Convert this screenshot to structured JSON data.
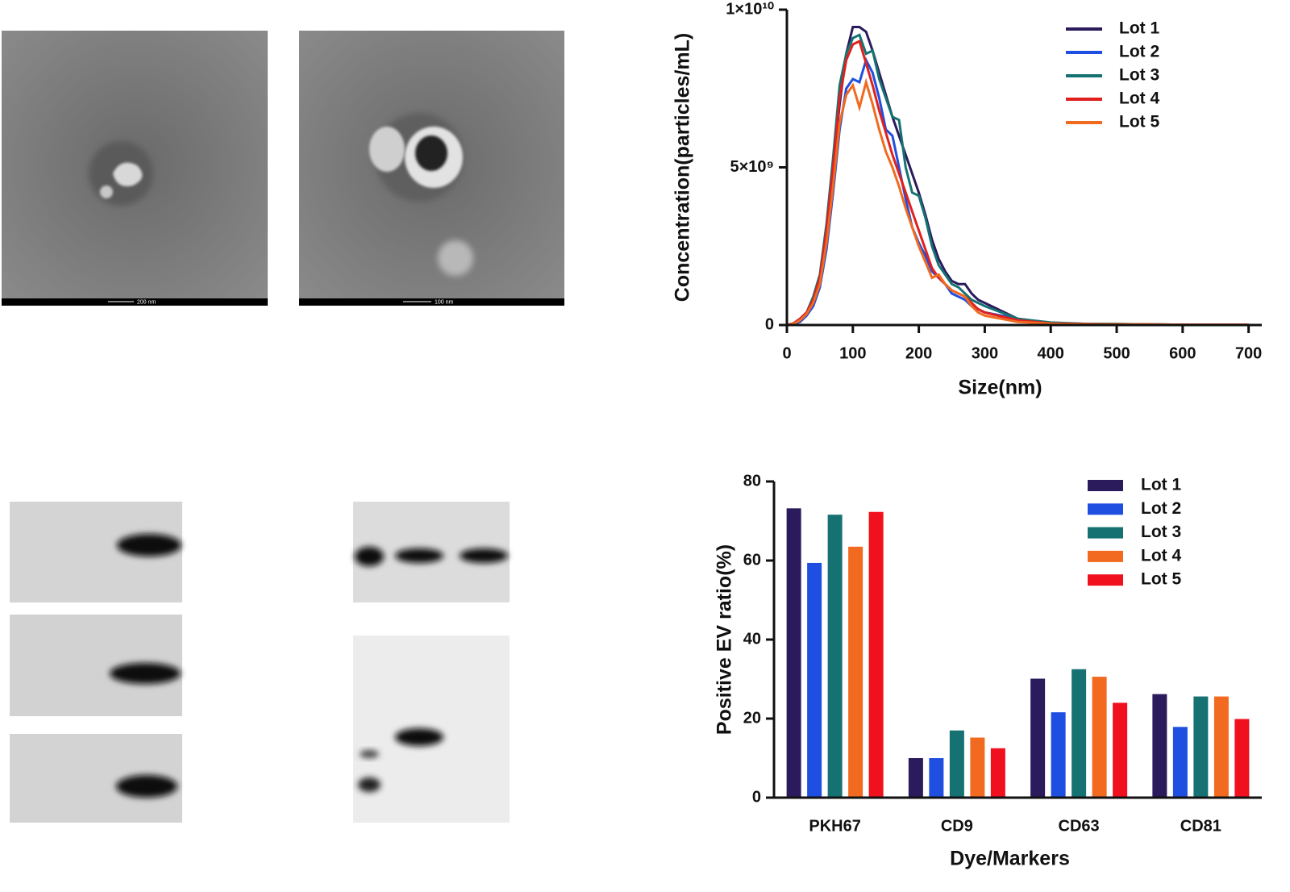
{
  "images": [
    {
      "scale_label": "200 nm"
    },
    {
      "scale_label": "100 nm"
    }
  ],
  "chart_data": [
    {
      "type": "line",
      "x_label": "Size(nm)",
      "y_label": "Concentration(particles/mL)",
      "x": [
        0,
        10,
        20,
        30,
        40,
        50,
        60,
        70,
        80,
        90,
        100,
        110,
        120,
        130,
        140,
        150,
        160,
        170,
        180,
        190,
        200,
        210,
        220,
        230,
        240,
        250,
        260,
        270,
        280,
        290,
        300,
        350,
        400,
        450,
        500,
        550,
        600,
        650,
        700
      ],
      "xlim": [
        0,
        720
      ],
      "xticks": [
        0,
        100,
        200,
        300,
        400,
        500,
        600,
        700
      ],
      "ylim": [
        0,
        10000000000.0
      ],
      "yticks": [
        0,
        {
          "value": 5000000000.0,
          "label": "5×10⁹"
        },
        {
          "value": 10000000000.0,
          "label": "1×10¹⁰"
        }
      ],
      "legend": "upper right",
      "series": [
        {
          "name": "Lot 1",
          "color": "#2b1a5c",
          "values": [
            0,
            50000000.0,
            200000000.0,
            400000000.0,
            800000000.0,
            1500000000.0,
            3000000000.0,
            5000000000.0,
            7000000000.0,
            8600000000.0,
            9450000000.0,
            9450000000.0,
            9300000000.0,
            8700000000.0,
            8000000000.0,
            7300000000.0,
            6600000000.0,
            6000000000.0,
            5400000000.0,
            4800000000.0,
            4200000000.0,
            3500000000.0,
            2700000000.0,
            2100000000.0,
            1700000000.0,
            1400000000.0,
            1300000000.0,
            1300000000.0,
            1000000000.0,
            800000000.0,
            700000000.0,
            200000000.0,
            50000000.0,
            30000000.0,
            30000000.0,
            10000000.0,
            10000000.0,
            10000000.0,
            10000000.0
          ]
        },
        {
          "name": "Lot 2",
          "color": "#1f4fe0",
          "values": [
            0,
            30000000.0,
            100000000.0,
            300000000.0,
            600000000.0,
            1200000000.0,
            2400000000.0,
            4200000000.0,
            6200000000.0,
            7500000000.0,
            7800000000.0,
            7700000000.0,
            8400000000.0,
            8000000000.0,
            7200000000.0,
            6200000000.0,
            6000000000.0,
            5000000000.0,
            4000000000.0,
            3100000000.0,
            2600000000.0,
            2200000000.0,
            1700000000.0,
            1500000000.0,
            1300000000.0,
            1000000000.0,
            900000000.0,
            800000000.0,
            600000000.0,
            500000000.0,
            400000000.0,
            200000000.0,
            50000000.0,
            30000000.0,
            20000000.0,
            20000000.0,
            10000000.0,
            10000000.0,
            10000000.0
          ]
        },
        {
          "name": "Lot 3",
          "color": "#167272",
          "values": [
            0,
            50000000.0,
            200000000.0,
            400000000.0,
            900000000.0,
            1600000000.0,
            3200000000.0,
            5300000000.0,
            7600000000.0,
            8600000000.0,
            9100000000.0,
            9200000000.0,
            8600000000.0,
            8700000000.0,
            7800000000.0,
            7200000000.0,
            6600000000.0,
            6500000000.0,
            5000000000.0,
            4200000000.0,
            4100000000.0,
            3400000000.0,
            2500000000.0,
            1900000000.0,
            1600000000.0,
            1300000000.0,
            1200000000.0,
            1000000000.0,
            800000000.0,
            700000000.0,
            600000000.0,
            200000000.0,
            80000000.0,
            40000000.0,
            30000000.0,
            20000000.0,
            10000000.0,
            10000000.0,
            10000000.0
          ]
        },
        {
          "name": "Lot 4",
          "color": "#e0201f",
          "values": [
            0,
            50000000.0,
            200000000.0,
            400000000.0,
            800000000.0,
            1500000000.0,
            3000000000.0,
            5000000000.0,
            7200000000.0,
            8400000000.0,
            8900000000.0,
            9000000000.0,
            8300000000.0,
            7600000000.0,
            6800000000.0,
            6100000000.0,
            5400000000.0,
            4800000000.0,
            4200000000.0,
            3600000000.0,
            3000000000.0,
            2400000000.0,
            1800000000.0,
            1500000000.0,
            1300000000.0,
            1100000000.0,
            1000000000.0,
            900000000.0,
            700000000.0,
            500000000.0,
            400000000.0,
            150000000.0,
            50000000.0,
            30000000.0,
            20000000.0,
            20000000.0,
            10000000.0,
            10000000.0,
            10000000.0
          ]
        },
        {
          "name": "Lot 5",
          "color": "#f06a20",
          "values": [
            0,
            40000000.0,
            150000000.0,
            350000000.0,
            700000000.0,
            1300000000.0,
            2600000000.0,
            4400000000.0,
            6400000000.0,
            7300000000.0,
            7600000000.0,
            6900000000.0,
            7700000000.0,
            7000000000.0,
            6200000000.0,
            5500000000.0,
            5000000000.0,
            4400000000.0,
            3700000000.0,
            3100000000.0,
            2500000000.0,
            2000000000.0,
            1500000000.0,
            1600000000.0,
            1300000000.0,
            1100000000.0,
            1000000000.0,
            900000000.0,
            600000000.0,
            400000000.0,
            300000000.0,
            100000000.0,
            40000000.0,
            20000000.0,
            20000000.0,
            20000000.0,
            10000000.0,
            10000000.0,
            10000000.0
          ]
        }
      ]
    },
    {
      "type": "bar",
      "x_label": "Dye/Markers",
      "y_label": "Positive EV ratio(%)",
      "categories": [
        "PKH67",
        "CD9",
        "CD63",
        "CD81"
      ],
      "ylim": [
        0,
        80
      ],
      "yticks": [
        0,
        20,
        40,
        60,
        80
      ],
      "legend": "upper right",
      "series": [
        {
          "name": "Lot 1",
          "color": "#2b1a5c",
          "values": [
            73.2,
            10,
            30.1,
            26.2
          ]
        },
        {
          "name": "Lot 2",
          "color": "#1f4fe0",
          "values": [
            59.4,
            10,
            21.6,
            17.9
          ]
        },
        {
          "name": "Lot 3",
          "color": "#167272",
          "values": [
            71.6,
            17,
            32.5,
            25.6
          ]
        },
        {
          "name": "Lot 4",
          "color": "#f26a1f",
          "values": [
            63.5,
            15.2,
            30.6,
            25.6
          ]
        },
        {
          "name": "Lot 5",
          "color": "#f0101e",
          "values": [
            72.3,
            12.5,
            24,
            19.9
          ]
        }
      ]
    }
  ]
}
